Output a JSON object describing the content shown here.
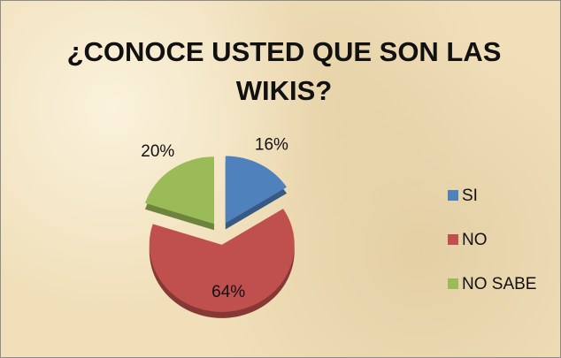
{
  "chart_data": {
    "type": "pie",
    "title": "¿CONOCE USTED QUE SON LAS WIKIS?",
    "categories": [
      "SI",
      "NO",
      "NO SABE"
    ],
    "values": [
      16,
      64,
      20
    ],
    "value_labels": [
      "16%",
      "64%",
      "20%"
    ],
    "colors": [
      "#4f81bd",
      "#c0504d",
      "#9bbb59"
    ],
    "legend": "right"
  }
}
